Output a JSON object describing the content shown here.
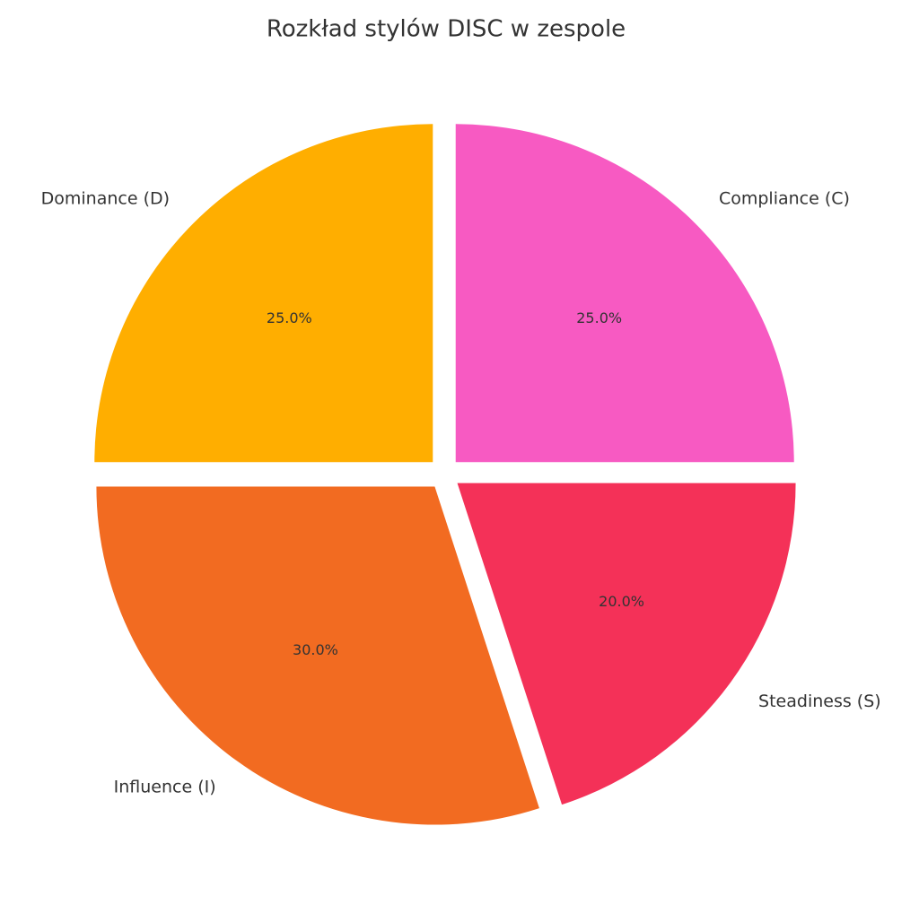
{
  "chart_data": {
    "type": "pie",
    "title": "Rozkład stylów DISC w zespole",
    "categories": [
      "Dominance (D)",
      "Influence (I)",
      "Steadiness (S)",
      "Compliance (C)"
    ],
    "values": [
      25,
      30,
      20,
      25
    ],
    "value_labels": [
      "25.0%",
      "30.0%",
      "20.0%",
      "25.0%"
    ],
    "colors": [
      "#FFAE00",
      "#F26B21",
      "#F43158",
      "#F75AC2"
    ]
  }
}
